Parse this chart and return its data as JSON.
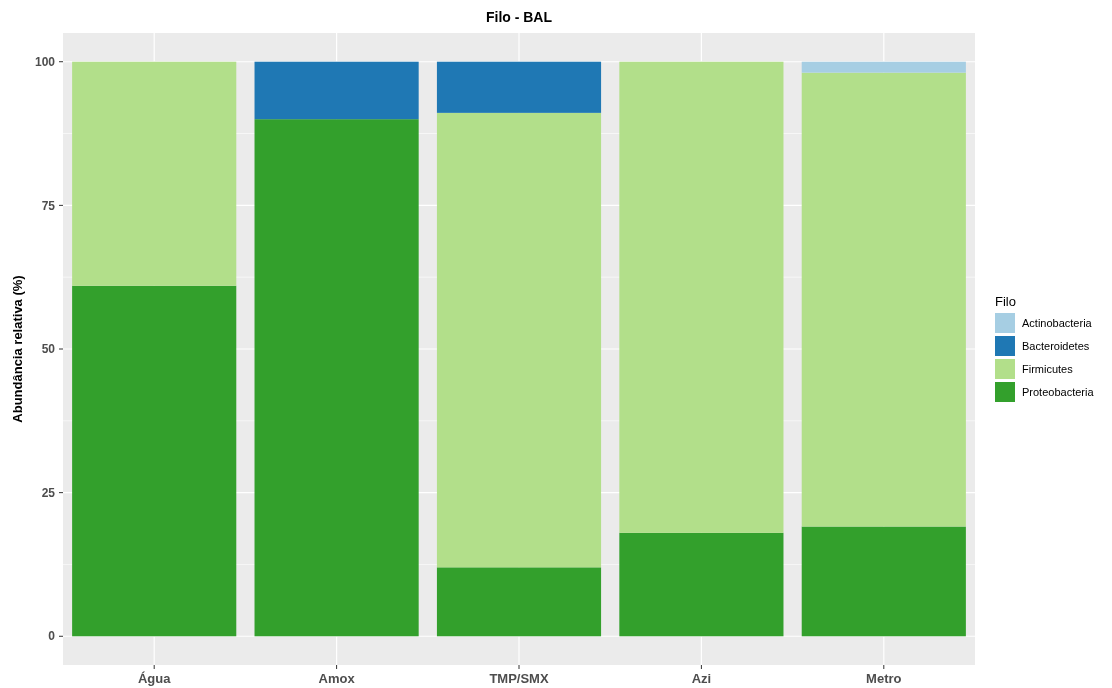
{
  "chart_data": {
    "type": "bar",
    "title": "Filo - BAL",
    "ylabel": "Abundância relativa (%)",
    "legend_title": "Filo",
    "categories": [
      "Água",
      "Amox",
      "TMP/SMX",
      "Azi",
      "Metro"
    ],
    "series": [
      {
        "name": "Proteobacteria",
        "color": "#33a02c",
        "values": [
          61,
          90,
          12,
          18,
          19.1
        ]
      },
      {
        "name": "Firmicutes",
        "color": "#b2df8a",
        "values": [
          39,
          0,
          79.1,
          82,
          79
        ]
      },
      {
        "name": "Bacteroidetes",
        "color": "#1f78b4",
        "values": [
          0,
          10,
          8.9,
          0,
          0
        ]
      },
      {
        "name": "Actinobacteria",
        "color": "#a6cee3",
        "values": [
          0,
          0,
          0,
          0,
          1.9
        ]
      }
    ],
    "stacked": true,
    "ylim": [
      -5,
      105
    ],
    "yticks": [
      0,
      25,
      50,
      75,
      100
    ],
    "grid": true,
    "legend": "right"
  }
}
